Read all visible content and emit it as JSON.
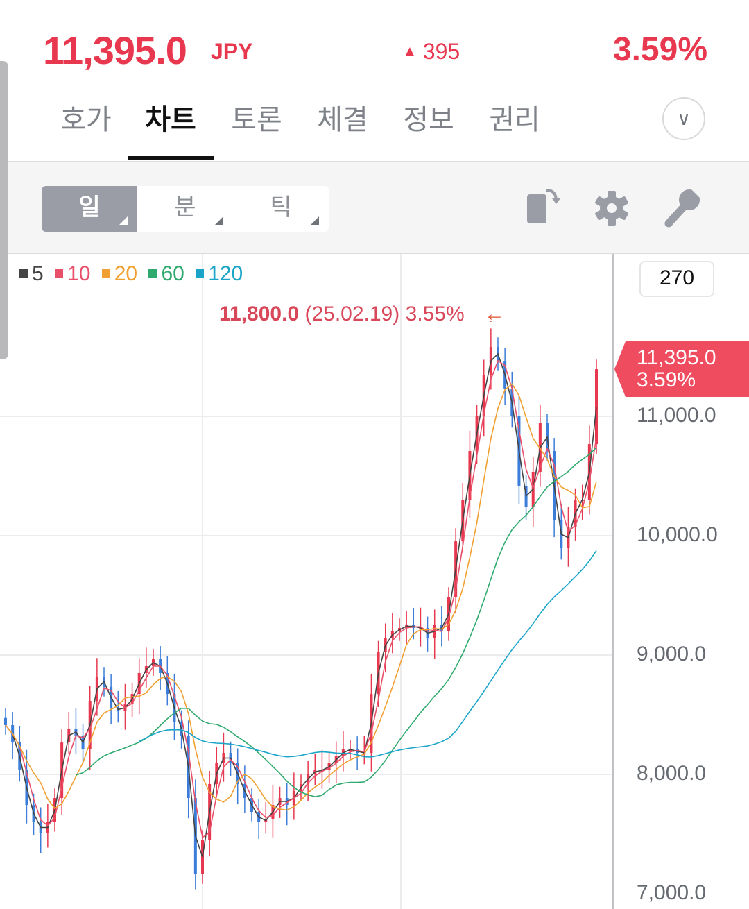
{
  "header": {
    "price": "11,395.0",
    "currency": "JPY",
    "change_icon": "triangle-up-icon",
    "change": "395",
    "change_percent": "3.59%",
    "up_color": "#e8384f"
  },
  "tabs": [
    {
      "label": "호가",
      "active": false
    },
    {
      "label": "차트",
      "active": true
    },
    {
      "label": "토론",
      "active": false
    },
    {
      "label": "체결",
      "active": false
    },
    {
      "label": "정보",
      "active": false
    },
    {
      "label": "권리",
      "active": false
    }
  ],
  "toolbar": {
    "periods": [
      {
        "label": "일",
        "active": true
      },
      {
        "label": "분",
        "active": false
      },
      {
        "label": "틱",
        "active": false
      }
    ],
    "icons": [
      "rotate-screen-icon",
      "gear-icon",
      "wrench-icon"
    ]
  },
  "chart_data": {
    "type": "candlestick",
    "moving_averages": [
      {
        "name": "5",
        "period": 5,
        "color": "#444444"
      },
      {
        "name": "10",
        "period": 10,
        "color": "#e8506a"
      },
      {
        "name": "20",
        "period": 20,
        "color": "#f0a030"
      },
      {
        "name": "60",
        "period": 60,
        "color": "#2eaa6e"
      },
      {
        "name": "120",
        "period": 120,
        "color": "#1aa4c8"
      }
    ],
    "visible_count": "270",
    "max_marker": {
      "value": "11,800.0",
      "date": "(25.02.19)",
      "percent": "3.55%",
      "arrow": "←"
    },
    "current_tag": {
      "price": "11,395.0",
      "percent": "3.59%"
    },
    "y_ticks": [
      "11,000.0",
      "10,000.0",
      "9,000.0",
      "8,000.0",
      "7,000.0"
    ],
    "ylim": [
      7000,
      11900
    ],
    "up_color": "#e8384f",
    "down_color": "#3b7dd8",
    "closes": [
      8413,
      8267,
      8035,
      7744,
      7599,
      7512,
      7599,
      7802,
      8267,
      8384,
      8326,
      8209,
      8616,
      8820,
      8733,
      8558,
      8529,
      8587,
      8674,
      8849,
      8907,
      8965,
      8849,
      8674,
      8442,
      8326,
      7802,
      7163,
      7453,
      7919,
      8093,
      8180,
      8093,
      7919,
      7802,
      7686,
      7599,
      7628,
      7744,
      7802,
      7744,
      7860,
      7919,
      8006,
      8035,
      8035,
      8093,
      8151,
      8209,
      8209,
      8180,
      8180,
      8674,
      9023,
      9140,
      9198,
      9227,
      9256,
      9227,
      9227,
      9140,
      9256,
      9198,
      9488,
      9953,
      10302,
      10709,
      11000,
      11349,
      11581,
      11465,
      11233,
      11000,
      10419,
      10244,
      10535,
      10942,
      10709,
      10128,
      9895,
      10070,
      10302,
      10302,
      10767,
      11395
    ]
  }
}
